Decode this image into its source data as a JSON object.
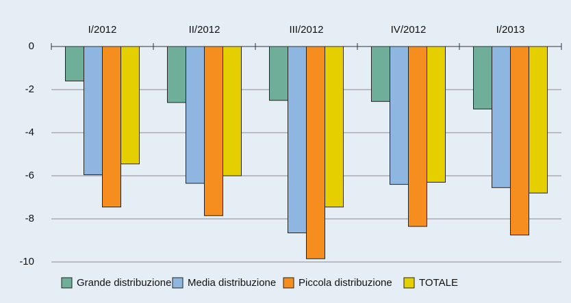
{
  "chart_data": {
    "type": "bar",
    "categories": [
      "I/2012",
      "II/2012",
      "III/2012",
      "IV/2012",
      "I/2013"
    ],
    "series": [
      {
        "name": "Grande distribuzione",
        "color": "#6fae98",
        "values": [
          -1.6,
          -2.6,
          -2.5,
          -2.55,
          -2.9
        ]
      },
      {
        "name": "Media distribuzione",
        "color": "#8fb6e0",
        "values": [
          -5.95,
          -6.35,
          -8.65,
          -6.4,
          -6.55
        ]
      },
      {
        "name": "Piccola distribuzione",
        "color": "#f58e1e",
        "values": [
          -7.45,
          -7.85,
          -9.85,
          -8.35,
          -8.75
        ]
      },
      {
        "name": "TOTALE",
        "color": "#e6cf00",
        "values": [
          -5.45,
          -6.0,
          -7.45,
          -6.3,
          -6.8
        ]
      }
    ],
    "ylim": [
      -10,
      0
    ],
    "yticks": [
      0,
      -2,
      -4,
      -6,
      -8,
      -10
    ],
    "grid": true,
    "legend": "bottom"
  }
}
